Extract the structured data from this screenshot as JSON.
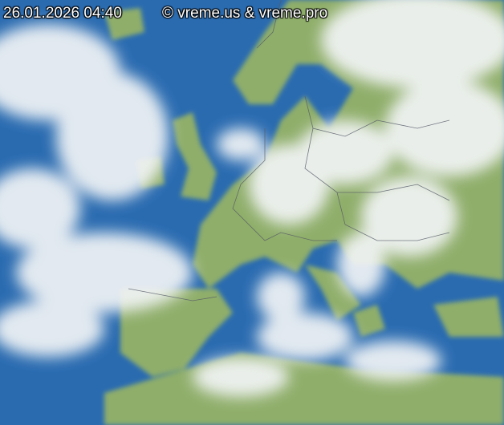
{
  "timestamp": "26.01.2026 04:40",
  "copyright": "© vreme.us & vreme.pro",
  "colors": {
    "sea": "#1f5fa8",
    "land": "#8fae6a",
    "cloud": "#f2f4f6",
    "borders": "#555a66"
  }
}
